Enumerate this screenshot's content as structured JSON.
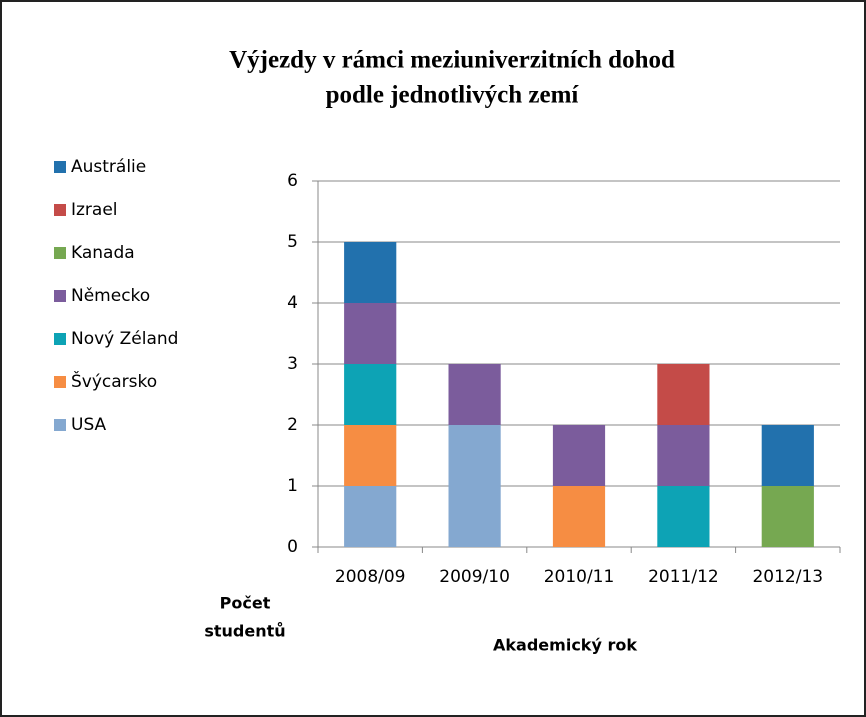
{
  "chart_data": {
    "type": "stacked_bar",
    "title": [
      "Výjezdy v rámci meziuniverzitních dohod",
      "podle jednotlivých zemí"
    ],
    "x_label": "Akademický rok",
    "y_label": [
      "Počet",
      "studentů"
    ],
    "categories": [
      "2008/09",
      "2009/10",
      "2010/11",
      "2011/12",
      "2012/13"
    ],
    "series": [
      {
        "name": "Austrálie",
        "color": "#2271ad",
        "values": [
          1,
          0,
          0,
          0,
          1
        ]
      },
      {
        "name": "Izrael",
        "color": "#c44b48",
        "values": [
          0,
          0,
          0,
          1,
          0
        ]
      },
      {
        "name": "Kanada",
        "color": "#76a851",
        "values": [
          0,
          0,
          0,
          0,
          1
        ]
      },
      {
        "name": "Německo",
        "color": "#7b5c9c",
        "values": [
          1,
          1,
          1,
          1,
          0
        ]
      },
      {
        "name": "Nový Zéland",
        "color": "#0da3b5",
        "values": [
          1,
          0,
          0,
          1,
          0
        ]
      },
      {
        "name": "Švýcarsko",
        "color": "#f68d43",
        "values": [
          1,
          0,
          1,
          0,
          0
        ]
      },
      {
        "name": "USA",
        "color": "#84a8d0",
        "values": [
          1,
          2,
          0,
          0,
          0
        ]
      }
    ],
    "ylim": [
      0,
      6
    ],
    "yticks": [
      0,
      1,
      2,
      3,
      4,
      5,
      6
    ],
    "grid": true,
    "legend": "left"
  }
}
